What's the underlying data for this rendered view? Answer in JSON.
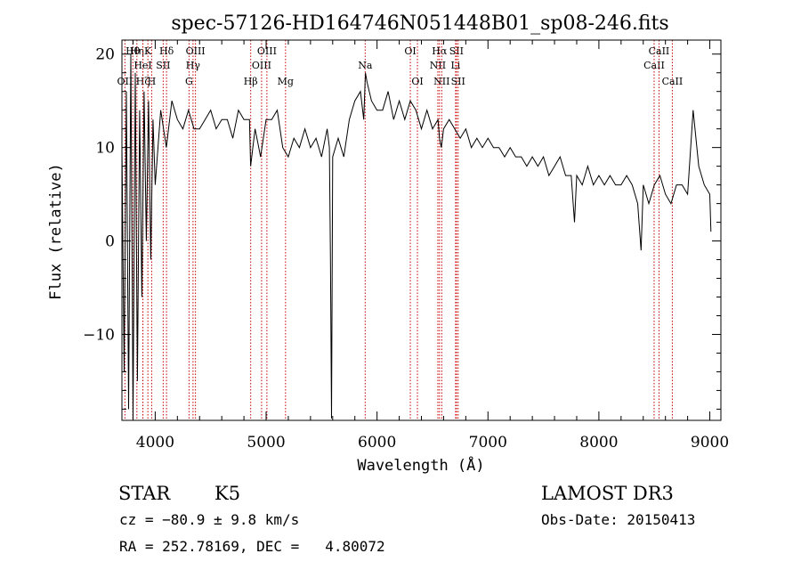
{
  "chart_data": {
    "type": "line",
    "title": "spec-57126-HD164746N051448B01_sp08-246.fits",
    "xlabel": "Wavelength (Å)",
    "ylabel": "Flux (relative)",
    "xlim": [
      3700,
      9100
    ],
    "ylim": [
      -19.2,
      21.5
    ],
    "xticks": [
      4000,
      5000,
      6000,
      7000,
      8000,
      9000
    ],
    "xtick_labels": [
      "4000",
      "5000",
      "6000",
      "7000",
      "8000",
      "9000"
    ],
    "yticks": [
      -10,
      0,
      10,
      20
    ],
    "ytick_labels": [
      "−10",
      "0",
      "10",
      "20"
    ],
    "spectrum": {
      "x": [
        3700,
        3720,
        3740,
        3760,
        3780,
        3800,
        3820,
        3840,
        3860,
        3880,
        3900,
        3920,
        3940,
        3960,
        3980,
        4000,
        4050,
        4100,
        4150,
        4200,
        4250,
        4300,
        4350,
        4400,
        4450,
        4500,
        4550,
        4600,
        4650,
        4700,
        4750,
        4800,
        4850,
        4860,
        4900,
        4950,
        5000,
        5050,
        5100,
        5150,
        5200,
        5250,
        5300,
        5350,
        5400,
        5450,
        5500,
        5550,
        5570,
        5580,
        5590,
        5600,
        5650,
        5700,
        5750,
        5800,
        5850,
        5880,
        5895,
        5910,
        5950,
        6000,
        6050,
        6100,
        6150,
        6200,
        6250,
        6300,
        6350,
        6400,
        6450,
        6500,
        6550,
        6563,
        6580,
        6600,
        6650,
        6700,
        6750,
        6800,
        6850,
        6900,
        6950,
        7000,
        7050,
        7100,
        7150,
        7200,
        7250,
        7300,
        7350,
        7400,
        7450,
        7500,
        7550,
        7600,
        7650,
        7700,
        7750,
        7780,
        7800,
        7850,
        7900,
        7950,
        8000,
        8050,
        8100,
        8150,
        8200,
        8250,
        8300,
        8350,
        8380,
        8400,
        8450,
        8500,
        8550,
        8600,
        8650,
        8700,
        8750,
        8800,
        8850,
        8900,
        8950,
        9000,
        9010
      ],
      "y": [
        10,
        -14,
        16,
        -18,
        20,
        -19,
        18,
        -15,
        14,
        -6,
        16,
        0,
        15,
        -2,
        13,
        6,
        14,
        10,
        15,
        13,
        12,
        14,
        12,
        12,
        13,
        14,
        12,
        13,
        13,
        11,
        14,
        13,
        13,
        8,
        12,
        9,
        13,
        13,
        14,
        10,
        9,
        11,
        10,
        12,
        10,
        11,
        9,
        12,
        10,
        -2,
        -19,
        9,
        11,
        9,
        13,
        15,
        16,
        13,
        18,
        17,
        15,
        14,
        14,
        16,
        13,
        15,
        13,
        15,
        14,
        12,
        14,
        12,
        13,
        11,
        10,
        12,
        13,
        12,
        11,
        12,
        10,
        11,
        10,
        11,
        10,
        10,
        9,
        10,
        9,
        9,
        8,
        9,
        8,
        9,
        7,
        8,
        9,
        7,
        7,
        2,
        7,
        6,
        8,
        6,
        7,
        6,
        7,
        6,
        6,
        7,
        6,
        4,
        -1,
        6,
        4,
        6,
        7,
        5,
        4,
        6,
        6,
        5,
        14,
        8,
        6,
        5,
        1
      ]
    },
    "lines": [
      {
        "label": "OII",
        "x": 3727,
        "row": 3
      },
      {
        "label": "Hθ",
        "x": 3798,
        "row": 1
      },
      {
        "label": "Hη",
        "x": 3835,
        "row": 1
      },
      {
        "label": "Hζ",
        "x": 3889,
        "row": 3
      },
      {
        "label": "HeI",
        "x": 3889,
        "row": 2
      },
      {
        "label": "K",
        "x": 3934,
        "row": 1
      },
      {
        "label": "H",
        "x": 3968,
        "row": 3
      },
      {
        "label": "SII",
        "x": 4072,
        "row": 2
      },
      {
        "label": "Hδ",
        "x": 4102,
        "row": 1
      },
      {
        "label": "G",
        "x": 4305,
        "row": 3
      },
      {
        "label": "Hγ",
        "x": 4341,
        "row": 2
      },
      {
        "label": "OIII",
        "x": 4363,
        "row": 1
      },
      {
        "label": "Hβ",
        "x": 4861,
        "row": 3
      },
      {
        "label": "OIII",
        "x": 4959,
        "row": 2
      },
      {
        "label": "OIII",
        "x": 5007,
        "row": 1
      },
      {
        "label": "Mg",
        "x": 5175,
        "row": 3
      },
      {
        "label": "Na",
        "x": 5893,
        "row": 2
      },
      {
        "label": "OI",
        "x": 6300,
        "row": 1
      },
      {
        "label": "OI",
        "x": 6364,
        "row": 3
      },
      {
        "label": "NII",
        "x": 6548,
        "row": 2
      },
      {
        "label": "Hα",
        "x": 6563,
        "row": 1
      },
      {
        "label": "NII",
        "x": 6583,
        "row": 3
      },
      {
        "label": "Li",
        "x": 6708,
        "row": 2
      },
      {
        "label": "SII",
        "x": 6716,
        "row": 1
      },
      {
        "label": "SII",
        "x": 6731,
        "row": 3
      },
      {
        "label": "CaII",
        "x": 8498,
        "row": 2
      },
      {
        "label": "CaII",
        "x": 8542,
        "row": 1
      },
      {
        "label": "CaII",
        "x": 8662,
        "row": 3
      }
    ]
  },
  "info": {
    "class": "STAR",
    "subclass": "K5",
    "survey": "LAMOST DR3",
    "cz": "cz = −80.9 ± 9.8 km/s",
    "obs_date": "Obs-Date: 20150413",
    "radec": "RA = 252.78169, DEC =   4.80072"
  }
}
